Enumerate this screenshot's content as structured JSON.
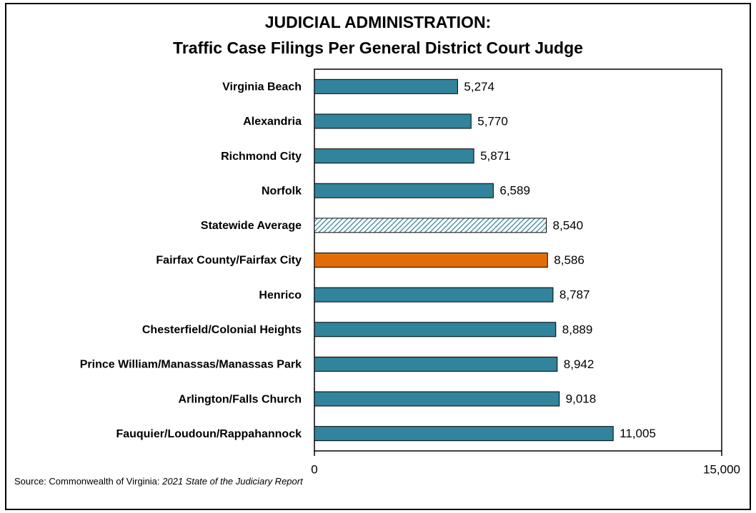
{
  "chart_data": {
    "type": "barh",
    "title": "JUDICIAL ADMINISTRATION:",
    "subtitle": "Traffic Case Filings Per General District Court Judge",
    "categories": [
      "Virginia Beach",
      "Alexandria",
      "Richmond City",
      "Norfolk",
      "Statewide Average",
      "Fairfax County/Fairfax City",
      "Henrico",
      "Chesterfield/Colonial Heights",
      "Prince William/Manassas/Manassas Park",
      "Arlington/Falls Church",
      "Fauquier/Loudoun/Rappahannock"
    ],
    "values": [
      5274,
      5770,
      5871,
      6589,
      8540,
      8586,
      8787,
      8889,
      8942,
      9018,
      11005
    ],
    "value_labels": [
      "5,274",
      "5,770",
      "5,871",
      "6,589",
      "8,540",
      "8,586",
      "8,787",
      "8,889",
      "8,942",
      "9,018",
      "11,005"
    ],
    "colors": [
      "#31849b",
      "#31849b",
      "#31849b",
      "#31849b",
      "#31849b",
      "#e36c0a",
      "#31849b",
      "#31849b",
      "#31849b",
      "#31849b",
      "#31849b"
    ],
    "patterns": [
      "solid",
      "solid",
      "solid",
      "solid",
      "hatch",
      "solid",
      "solid",
      "solid",
      "solid",
      "solid",
      "solid"
    ],
    "xlim": [
      0,
      15000
    ],
    "xticks": [
      0,
      {
        "value": 15000,
        "label": "15,000"
      }
    ],
    "source_prefix": "Source: Commonwealth of Virginia: ",
    "source_title": "2021 State of the Judiciary Report"
  }
}
